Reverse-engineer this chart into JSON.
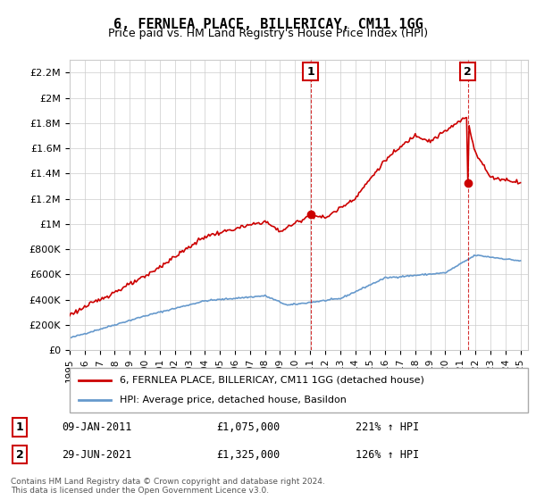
{
  "title": "6, FERNLEA PLACE, BILLERICAY, CM11 1GG",
  "subtitle": "Price paid vs. HM Land Registry's House Price Index (HPI)",
  "legend_line1": "6, FERNLEA PLACE, BILLERICAY, CM11 1GG (detached house)",
  "legend_line2": "HPI: Average price, detached house, Basildon",
  "annotation1_label": "1",
  "annotation1_date": "09-JAN-2011",
  "annotation1_price": "£1,075,000",
  "annotation1_hpi": "221% ↑ HPI",
  "annotation2_label": "2",
  "annotation2_date": "29-JUN-2021",
  "annotation2_price": "£1,325,000",
  "annotation2_hpi": "126% ↑ HPI",
  "footer": "Contains HM Land Registry data © Crown copyright and database right 2024.\nThis data is licensed under the Open Government Licence v3.0.",
  "red_color": "#cc0000",
  "blue_color": "#6699cc",
  "vline_color": "#cc0000",
  "ylim": [
    0,
    2300000
  ],
  "yticks": [
    0,
    200000,
    400000,
    600000,
    800000,
    1000000,
    1200000,
    1400000,
    1600000,
    1800000,
    2000000,
    2200000
  ],
  "ytick_labels": [
    "£0",
    "£200K",
    "£400K",
    "£600K",
    "£800K",
    "£1M",
    "£1.2M",
    "£1.4M",
    "£1.6M",
    "£1.8M",
    "£2M",
    "£2.2M"
  ],
  "xlim_start": 1995.0,
  "xlim_end": 2025.5,
  "vline1_x": 2011.03,
  "vline2_x": 2021.49,
  "sale1_y": 1075000,
  "sale2_y": 1325000
}
